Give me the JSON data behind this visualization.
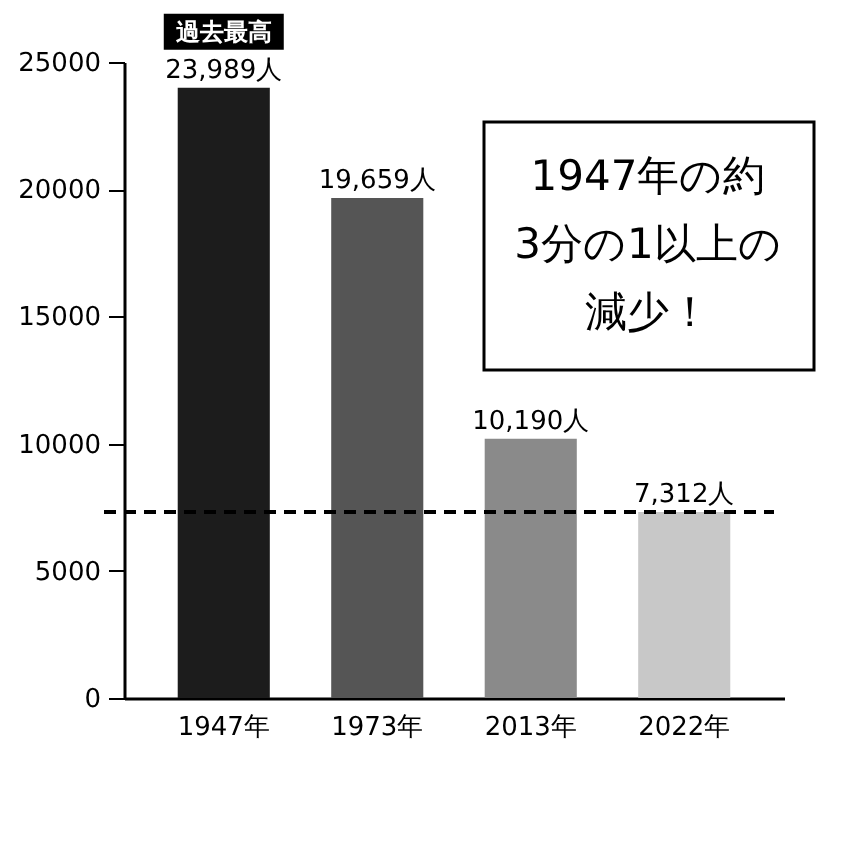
{
  "chart_data": {
    "type": "bar",
    "categories": [
      "1947年",
      "1973年",
      "2013年",
      "2022年"
    ],
    "values": [
      23989,
      19659,
      10190,
      7312
    ],
    "colors": [
      "#1c1c1c",
      "#555555",
      "#8a8a8a",
      "#c8c8c8"
    ],
    "value_labels": [
      "23,989人",
      "19,659人",
      "10,190人",
      "7,312人"
    ],
    "ylim": [
      0,
      25000
    ],
    "yticks": [
      0,
      5000,
      10000,
      15000,
      20000,
      25000
    ],
    "ref_lines": [
      {
        "axis": "y",
        "value": 7312,
        "line_style": "dashed",
        "color": "#000000"
      }
    ],
    "annotations": [
      {
        "text": "過去最高",
        "x": "1947年",
        "y": 23989
      },
      "1947年の約3分の1以上の減少！"
    ]
  }
}
